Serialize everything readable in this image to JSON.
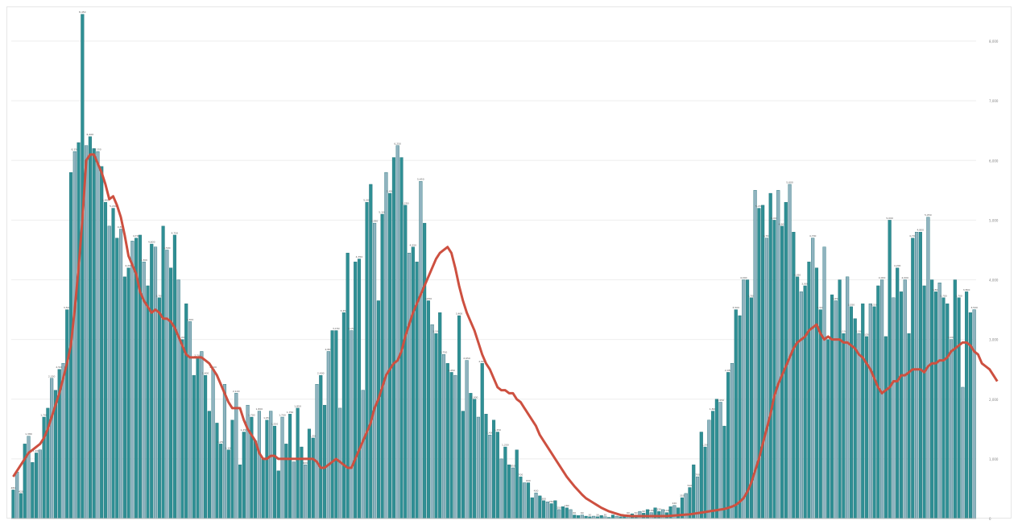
{
  "colors": {
    "background": "#ffffff",
    "bar_fill": "#2f8f94",
    "bar_edge": "#1f6f76",
    "bar_light": "#8fb3bf",
    "moving_average": "#cd5040",
    "gridline": "#eeeeee",
    "axis": "#bdbdbd"
  },
  "chart_data": {
    "type": "bar",
    "title": "",
    "xlabel": "",
    "ylabel": "",
    "ylim": [
      0,
      8500
    ],
    "y_axis_side": "right",
    "grid": true,
    "yticks": [
      0,
      1000,
      2000,
      3000,
      4000,
      5000,
      6000,
      7000,
      8000
    ],
    "data_labels": true,
    "series": [
      {
        "kind": "bar",
        "values": [
          480,
          780,
          420,
          1250,
          1380,
          940,
          1100,
          1150,
          1700,
          1850,
          2350,
          2150,
          2500,
          2600,
          3500,
          5800,
          6150,
          6300,
          8450,
          6250,
          6400,
          6200,
          6150,
          5900,
          5300,
          4900,
          5200,
          4700,
          4850,
          4050,
          4200,
          4650,
          4700,
          4750,
          4300,
          3900,
          4600,
          4550,
          3700,
          4900,
          4500,
          4200,
          4750,
          4000,
          3000,
          3600,
          3300,
          2400,
          2700,
          2800,
          2400,
          1800,
          2500,
          1600,
          1250,
          2250,
          1150,
          1650,
          2100,
          900,
          1450,
          1900,
          1700,
          1300,
          1800,
          1000,
          1650,
          1800,
          1550,
          800,
          1700,
          1250,
          1750,
          950,
          1850,
          1200,
          900,
          1500,
          1350,
          2250,
          2400,
          1900,
          2800,
          3150,
          3150,
          1850,
          3450,
          4450,
          3150,
          4300,
          4350,
          2150,
          5300,
          5600,
          4950,
          3650,
          5100,
          5800,
          5450,
          6050,
          6250,
          6050,
          5250,
          4450,
          4550,
          4300,
          5650,
          4950,
          3650,
          3250,
          3100,
          3450,
          2750,
          2600,
          2450,
          2400,
          3400,
          1800,
          2650,
          2100,
          2000,
          1700,
          2600,
          1750,
          1400,
          1650,
          1450,
          1000,
          1200,
          900,
          850,
          1150,
          700,
          600,
          600,
          350,
          430,
          380,
          300,
          280,
          250,
          300,
          150,
          200,
          180,
          150,
          60,
          50,
          60,
          40,
          30,
          40,
          30,
          50,
          30,
          20,
          60,
          40,
          30,
          50,
          60,
          80,
          60,
          120,
          90,
          150,
          100,
          180,
          120,
          150,
          100,
          200,
          220,
          180,
          350,
          420,
          520,
          900,
          700,
          1450,
          1200,
          1650,
          1800,
          2000,
          1950,
          1550,
          2450,
          2600,
          3500,
          3400,
          4000,
          4000,
          3700,
          5500,
          5200,
          5250,
          4700,
          5450,
          5000,
          5500,
          4900,
          5300,
          5600,
          4800,
          4050,
          3800,
          3900,
          4300,
          4700,
          4200,
          3500,
          4550,
          3000,
          3750,
          3650,
          4000,
          3100,
          4050,
          3550,
          3350,
          3100,
          3600,
          3050,
          3600,
          3550,
          3900,
          4000,
          3050,
          5000,
          3700,
          4200,
          3800,
          4000,
          3100,
          4700,
          4800,
          4800,
          3900,
          5050,
          4000,
          3800,
          3950,
          3700,
          3600,
          3000,
          4000,
          3700,
          2200,
          3800,
          3450,
          3500
        ]
      },
      {
        "kind": "line",
        "values": [
          700,
          800,
          900,
          1000,
          1100,
          1150,
          1200,
          1250,
          1350,
          1500,
          1700,
          1900,
          2100,
          2350,
          2600,
          2900,
          3500,
          4200,
          5000,
          6000,
          6100,
          6100,
          5950,
          5800,
          5600,
          5350,
          5400,
          5250,
          5050,
          4750,
          4400,
          4250,
          4100,
          3800,
          3650,
          3550,
          3450,
          3500,
          3450,
          3350,
          3350,
          3300,
          3200,
          3050,
          2900,
          2750,
          2700,
          2700,
          2700,
          2700,
          2650,
          2600,
          2500,
          2400,
          2250,
          2100,
          1950,
          1850,
          1850,
          1850,
          1650,
          1500,
          1400,
          1300,
          1100,
          1000,
          1000,
          1050,
          1050,
          1000,
          1000,
          1000,
          1000,
          1000,
          1000,
          1000,
          1000,
          1000,
          1000,
          950,
          850,
          850,
          900,
          950,
          1000,
          950,
          900,
          850,
          850,
          1000,
          1150,
          1300,
          1450,
          1600,
          1850,
          2000,
          2200,
          2400,
          2500,
          2600,
          2650,
          2800,
          3050,
          3250,
          3450,
          3600,
          3750,
          3900,
          4050,
          4200,
          4350,
          4450,
          4500,
          4550,
          4450,
          4200,
          3900,
          3650,
          3450,
          3300,
          3150,
          2950,
          2750,
          2600,
          2500,
          2350,
          2200,
          2150,
          2150,
          2100,
          2100,
          2000,
          1950,
          1850,
          1750,
          1650,
          1550,
          1400,
          1300,
          1200,
          1100,
          1000,
          900,
          800,
          700,
          620,
          540,
          470,
          400,
          340,
          300,
          260,
          220,
          180,
          150,
          120,
          100,
          80,
          60,
          50,
          45,
          40,
          40,
          40,
          40,
          40,
          40,
          40,
          40,
          40,
          40,
          45,
          50,
          55,
          60,
          65,
          70,
          80,
          90,
          100,
          110,
          120,
          130,
          140,
          150,
          160,
          180,
          200,
          230,
          280,
          340,
          450,
          600,
          800,
          1000,
          1250,
          1500,
          1750,
          2050,
          2250,
          2400,
          2550,
          2700,
          2850,
          2950,
          3000,
          3050,
          3150,
          3200,
          3250,
          3100,
          3000,
          3050,
          3000,
          3000,
          3000,
          2950,
          2950,
          2900,
          2850,
          2750,
          2700,
          2600,
          2500,
          2350,
          2200,
          2100,
          2150,
          2200,
          2300,
          2300,
          2400,
          2400,
          2450,
          2500,
          2500,
          2500,
          2450,
          2550,
          2600,
          2600,
          2650,
          2650,
          2700,
          2800,
          2850,
          2900,
          2950,
          2950,
          2900,
          2800,
          2750,
          2600,
          2550,
          2500,
          2400,
          2300
        ]
      }
    ]
  }
}
